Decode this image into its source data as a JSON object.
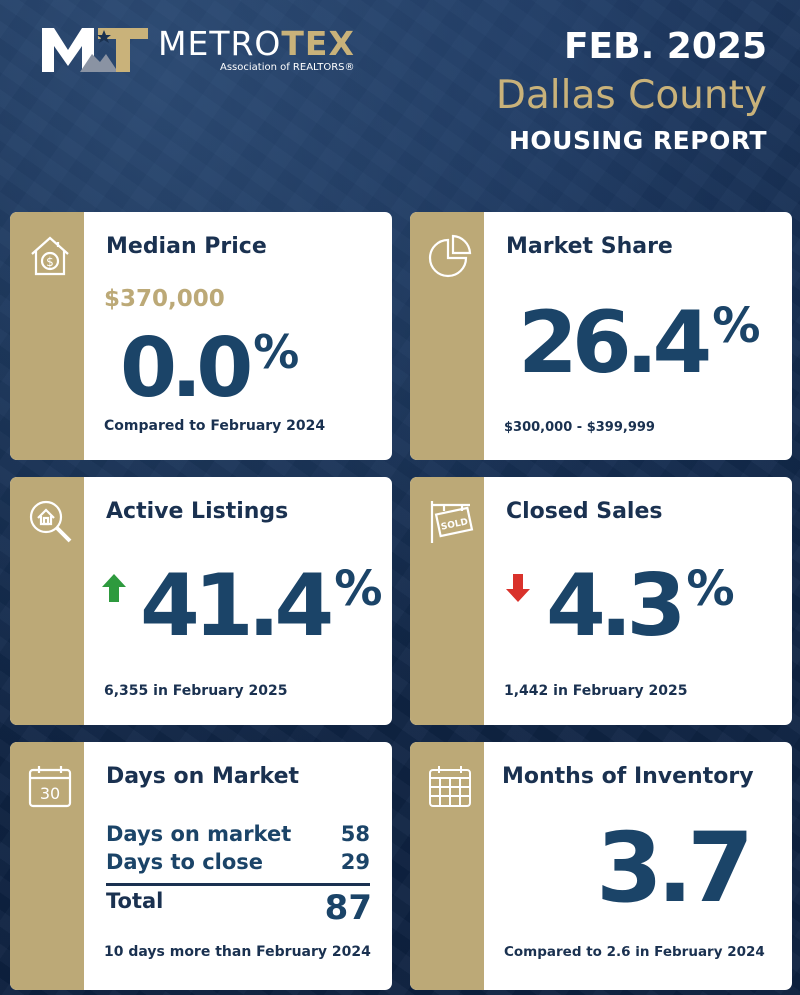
{
  "brand": {
    "name_part1": "METRO",
    "name_part2": "TEX",
    "tagline": "Association of REALTORS®",
    "colors": {
      "navy": "#0f2340",
      "gold": "#bca977",
      "heading_gold": "#c9b27a",
      "value_blue": "#1b4468",
      "up_green": "#2e9a3e",
      "down_red": "#d9322b"
    }
  },
  "header": {
    "date": "FEB. 2025",
    "county": "Dallas County",
    "report": "HOUSING REPORT"
  },
  "cards": {
    "median_price": {
      "icon": "house-dollar-icon",
      "title": "Median Price",
      "price": "$370,000",
      "value": "0.0",
      "unit": "%",
      "footnote": "Compared to February 2024"
    },
    "market_share": {
      "icon": "pie-chart-icon",
      "title": "Market Share",
      "value": "26.4",
      "unit": "%",
      "footnote": "$300,000 - $399,999"
    },
    "active_listings": {
      "icon": "house-magnifier-icon",
      "title": "Active Listings",
      "direction": "up",
      "value": "41.4",
      "unit": "%",
      "footnote": "6,355 in February 2025"
    },
    "closed_sales": {
      "icon": "sold-sign-icon",
      "title": "Closed Sales",
      "direction": "down",
      "value": "4.3",
      "unit": "%",
      "footnote": "1,442 in February 2025"
    },
    "days_on_market": {
      "icon": "calendar-30-icon",
      "icon_text": "30",
      "title": "Days on Market",
      "rows": [
        {
          "label": "Days on market",
          "value": "58"
        },
        {
          "label": "Days to close",
          "value": "29"
        }
      ],
      "total_label": "Total",
      "total_value": "87",
      "footnote": "10 days more than February 2024"
    },
    "months_inventory": {
      "icon": "calendar-grid-icon",
      "title": "Months of Inventory",
      "value": "3.7",
      "footnote": "Compared to 2.6 in February 2024"
    }
  }
}
